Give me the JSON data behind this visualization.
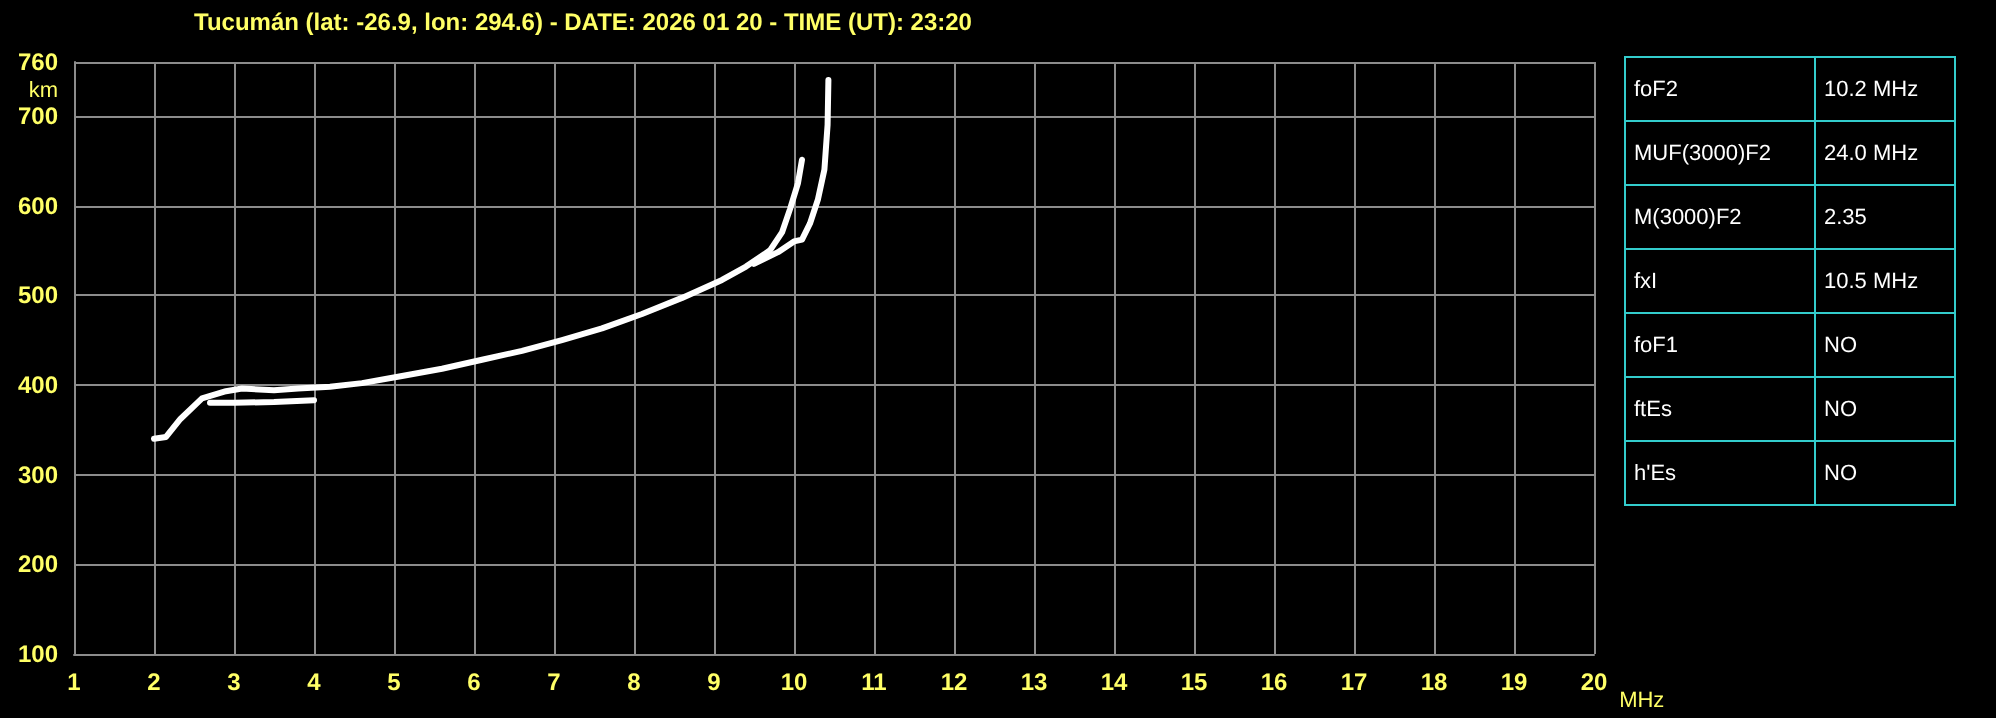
{
  "chart_data": [
    {
      "type": "line",
      "title": "Tucumán (lat: -26.9, lon: 294.6) - DATE: 2026 01 20 - TIME (UT): 23:20",
      "xlabel": "MHz",
      "ylabel": "km",
      "xlim": [
        1,
        20
      ],
      "xticks": [
        1,
        2,
        3,
        4,
        5,
        6,
        7,
        8,
        9,
        10,
        11,
        12,
        13,
        14,
        15,
        16,
        17,
        18,
        19,
        20
      ],
      "ylim": [
        100,
        760
      ],
      "yticks": [
        100,
        200,
        300,
        400,
        500,
        600,
        700,
        760
      ],
      "grid": true,
      "marker": "none",
      "line_style": "solid",
      "series": [
        {
          "color": "#ffffff",
          "x": [
            2.0,
            2.15,
            2.33,
            2.6,
            2.9,
            3.1,
            3.5,
            3.8,
            4.2,
            4.6,
            5.1,
            5.6,
            6.1,
            6.6,
            7.1,
            7.6,
            8.1,
            8.6,
            9.1,
            9.4,
            9.7,
            9.85,
            9.95,
            10.05,
            10.1
          ],
          "values": [
            340,
            342,
            362,
            385,
            393,
            396,
            394,
            396,
            398,
            402,
            410,
            418,
            428,
            438,
            450,
            463,
            479,
            497,
            517,
            532,
            550,
            570,
            596,
            625,
            651
          ]
        },
        {
          "color": "#ffffff",
          "x": [
            2.7,
            3.0,
            3.5,
            4.0,
            6.0,
            9.5,
            9.8,
            10.0,
            10.1,
            10.2,
            10.3,
            10.38,
            10.42,
            10.43
          ],
          "values": [
            380,
            380,
            381,
            383,
            null,
            535,
            548,
            560,
            562,
            580,
            607,
            640,
            690,
            740
          ]
        }
      ]
    },
    {
      "type": "other",
      "categories": [
        "foF2",
        "MUF(3000)F2",
        "M(3000)F2",
        "fxI",
        "foF1",
        "ftEs",
        "h'Es"
      ],
      "value_labels": [
        "10.2 MHz",
        "24.0 MHz",
        "2.35",
        "10.5 MHz",
        "NO",
        "NO",
        "NO"
      ]
    }
  ]
}
